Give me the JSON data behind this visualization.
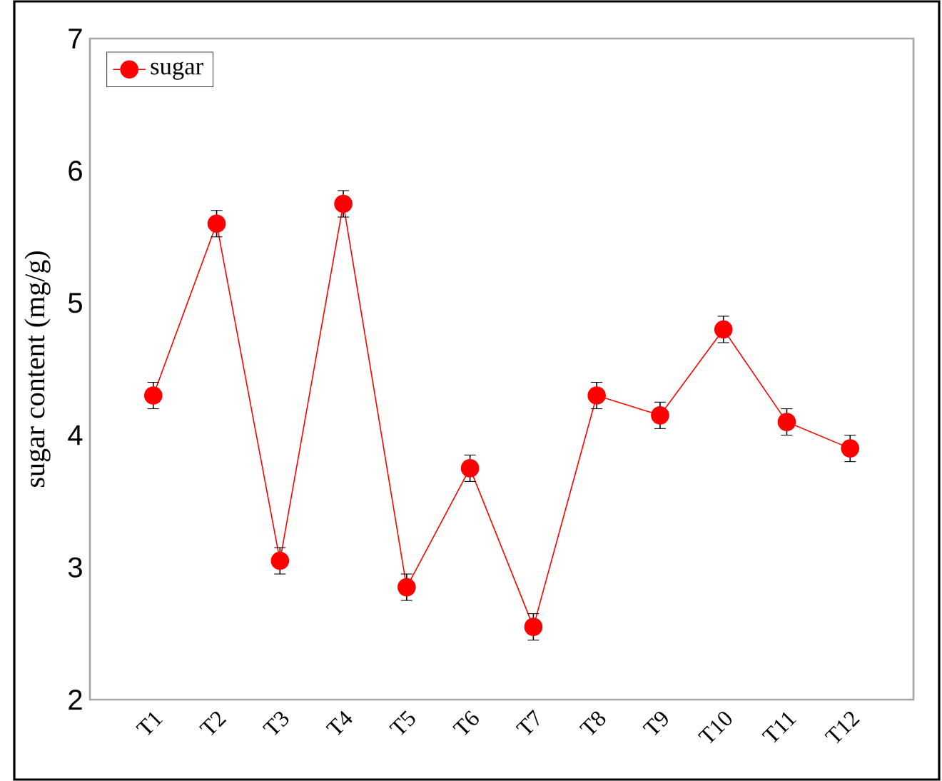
{
  "chart_data": {
    "type": "line",
    "ylabel": "sugar content (mg/g)",
    "categories": [
      "T1",
      "T2",
      "T3",
      "T4",
      "T5",
      "T6",
      "T7",
      "T8",
      "T9",
      "T10",
      "T11",
      "T12"
    ],
    "series": [
      {
        "name": "sugar",
        "color": "#ff0000",
        "values": [
          4.3,
          5.6,
          3.05,
          5.75,
          2.85,
          3.75,
          2.55,
          4.3,
          4.15,
          4.8,
          4.1,
          3.9
        ],
        "errors": [
          0.1,
          0.1,
          0.1,
          0.1,
          0.1,
          0.1,
          0.1,
          0.1,
          0.1,
          0.1,
          0.1,
          0.1
        ]
      }
    ],
    "ylim": [
      2,
      7
    ],
    "yticks": [
      2,
      3,
      4,
      5,
      6,
      7
    ],
    "grid": false,
    "legend": "top left",
    "marker": "circle",
    "line_style": "solid"
  }
}
